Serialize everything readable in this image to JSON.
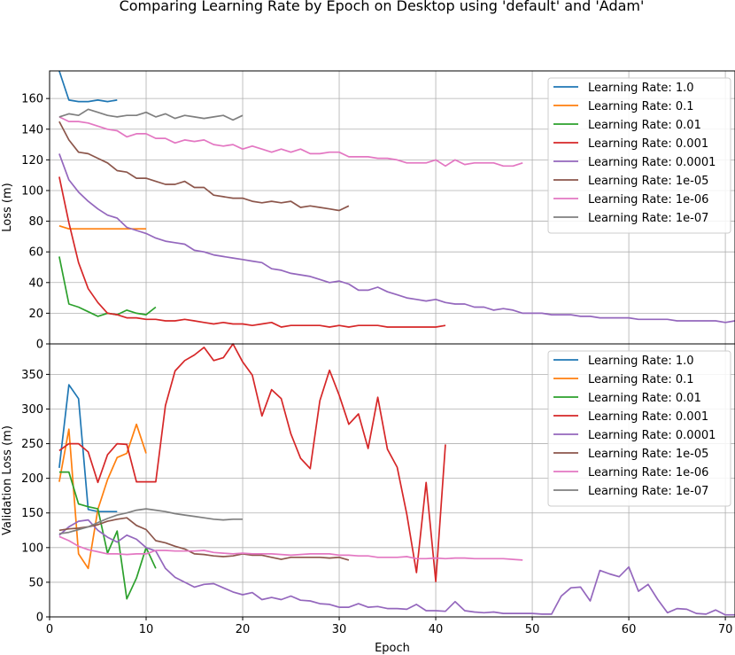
{
  "figure": {
    "title": "Comparing Learning Rate by Epoch on Desktop using 'default' and 'Adam'"
  },
  "chart_data": [
    {
      "type": "line",
      "xlabel": "",
      "ylabel": "Loss (m)",
      "xlim": [
        0,
        71
      ],
      "ylim": [
        0,
        178
      ],
      "yticks": [
        0,
        20,
        40,
        60,
        80,
        100,
        120,
        140,
        160
      ],
      "grid": true,
      "legend_position": "upper right",
      "series": [
        {
          "name": "Learning Rate: 1.0",
          "color": "#1f77b4",
          "x": [
            1,
            2,
            3,
            4,
            5,
            6,
            7
          ],
          "y": [
            178,
            159,
            158,
            158,
            159,
            158,
            159
          ]
        },
        {
          "name": "Learning Rate: 0.1",
          "color": "#ff7f0e",
          "x": [
            1,
            2,
            3,
            4,
            5,
            6,
            7,
            8,
            9,
            10
          ],
          "y": [
            77,
            75,
            75,
            75,
            75,
            75,
            75,
            75,
            75,
            75
          ]
        },
        {
          "name": "Learning Rate: 0.01",
          "color": "#2ca02c",
          "x": [
            1,
            2,
            3,
            4,
            5,
            6,
            7,
            8,
            9,
            10,
            11
          ],
          "y": [
            57,
            26,
            24,
            21,
            18,
            20,
            19,
            22,
            20,
            19,
            24
          ]
        },
        {
          "name": "Learning Rate: 0.001",
          "color": "#d62728",
          "x": [
            1,
            2,
            3,
            4,
            5,
            6,
            7,
            8,
            9,
            10,
            11,
            12,
            13,
            14,
            15,
            16,
            17,
            18,
            19,
            20,
            21,
            22,
            23,
            24,
            25,
            26,
            27,
            28,
            29,
            30,
            31,
            32,
            33,
            34,
            35,
            36,
            37,
            38,
            39,
            40,
            41
          ],
          "y": [
            109,
            79,
            53,
            36,
            27,
            20,
            19,
            17,
            17,
            16,
            16,
            15,
            15,
            16,
            15,
            14,
            13,
            14,
            13,
            13,
            12,
            13,
            14,
            11,
            12,
            12,
            12,
            12,
            11,
            12,
            11,
            12,
            12,
            12,
            11,
            11,
            11,
            11,
            11,
            11,
            12
          ]
        },
        {
          "name": "Learning Rate: 0.0001",
          "color": "#9467bd",
          "x": [
            1,
            2,
            3,
            4,
            5,
            6,
            7,
            8,
            9,
            10,
            11,
            12,
            13,
            14,
            15,
            16,
            17,
            18,
            19,
            20,
            21,
            22,
            23,
            24,
            25,
            26,
            27,
            28,
            29,
            30,
            31,
            32,
            33,
            34,
            35,
            36,
            37,
            38,
            39,
            40,
            41,
            42,
            43,
            44,
            45,
            46,
            47,
            48,
            49,
            50,
            51,
            52,
            53,
            54,
            55,
            56,
            57,
            58,
            59,
            60,
            61,
            62,
            63,
            64,
            65,
            66,
            67,
            68,
            69,
            70,
            71
          ],
          "y": [
            124,
            107,
            99,
            93,
            88,
            84,
            82,
            76,
            74,
            72,
            69,
            67,
            66,
            65,
            61,
            60,
            58,
            57,
            56,
            55,
            54,
            53,
            49,
            48,
            46,
            45,
            44,
            42,
            40,
            41,
            39,
            35,
            35,
            37,
            34,
            32,
            30,
            29,
            28,
            29,
            27,
            26,
            26,
            24,
            24,
            22,
            23,
            22,
            20,
            20,
            20,
            19,
            19,
            19,
            18,
            18,
            17,
            17,
            17,
            17,
            16,
            16,
            16,
            16,
            15,
            15,
            15,
            15,
            15,
            14,
            15
          ]
        },
        {
          "name": "Learning Rate: 1e-05",
          "color": "#8c564b",
          "x": [
            1,
            2,
            3,
            4,
            5,
            6,
            7,
            8,
            9,
            10,
            11,
            12,
            13,
            14,
            15,
            16,
            17,
            18,
            19,
            20,
            21,
            22,
            23,
            24,
            25,
            26,
            27,
            28,
            29,
            30,
            31
          ],
          "y": [
            145,
            133,
            125,
            124,
            121,
            118,
            113,
            112,
            108,
            108,
            106,
            104,
            104,
            106,
            102,
            102,
            97,
            96,
            95,
            95,
            93,
            92,
            93,
            92,
            93,
            89,
            90,
            89,
            88,
            87,
            90
          ]
        },
        {
          "name": "Learning Rate: 1e-06",
          "color": "#e377c2",
          "x": [
            1,
            2,
            3,
            4,
            5,
            6,
            7,
            8,
            9,
            10,
            11,
            12,
            13,
            14,
            15,
            16,
            17,
            18,
            19,
            20,
            21,
            22,
            23,
            24,
            25,
            26,
            27,
            28,
            29,
            30,
            31,
            32,
            33,
            34,
            35,
            36,
            37,
            38,
            39,
            40,
            41,
            42,
            43,
            44,
            45,
            46,
            47,
            48,
            49
          ],
          "y": [
            148,
            145,
            145,
            144,
            142,
            140,
            139,
            135,
            137,
            137,
            134,
            134,
            131,
            133,
            132,
            133,
            130,
            129,
            130,
            127,
            129,
            127,
            125,
            127,
            125,
            127,
            124,
            124,
            125,
            125,
            122,
            122,
            122,
            121,
            121,
            120,
            118,
            118,
            118,
            120,
            116,
            120,
            117,
            118,
            118,
            118,
            116,
            116,
            118
          ]
        },
        {
          "name": "Learning Rate: 1e-07",
          "color": "#7f7f7f",
          "x": [
            1,
            2,
            3,
            4,
            5,
            6,
            7,
            8,
            9,
            10,
            11,
            12,
            13,
            14,
            15,
            16,
            17,
            18,
            19,
            20
          ],
          "y": [
            148,
            150,
            149,
            153,
            151,
            149,
            148,
            149,
            149,
            151,
            148,
            150,
            147,
            149,
            148,
            147,
            148,
            149,
            146,
            149
          ]
        }
      ]
    },
    {
      "type": "line",
      "xlabel": "Epoch",
      "ylabel": "Validation Loss (m)",
      "xlim": [
        0,
        71
      ],
      "ylim": [
        0,
        394
      ],
      "xticks": [
        0,
        10,
        20,
        30,
        40,
        50,
        60,
        70
      ],
      "yticks": [
        0,
        50,
        100,
        150,
        200,
        250,
        300,
        350
      ],
      "grid": true,
      "legend_position": "upper right",
      "series": [
        {
          "name": "Learning Rate: 1.0",
          "color": "#1f77b4",
          "x": [
            1,
            2,
            3,
            4,
            5,
            6,
            7
          ],
          "y": [
            215,
            335,
            315,
            155,
            152,
            152,
            152
          ]
        },
        {
          "name": "Learning Rate: 0.1",
          "color": "#ff7f0e",
          "x": [
            1,
            2,
            3,
            4,
            5,
            6,
            7,
            8,
            9,
            10
          ],
          "y": [
            195,
            271,
            91,
            70,
            155,
            198,
            230,
            236,
            278,
            236
          ]
        },
        {
          "name": "Learning Rate: 0.01",
          "color": "#2ca02c",
          "x": [
            1,
            2,
            3,
            4,
            5,
            6,
            7,
            8,
            9,
            10,
            11
          ],
          "y": [
            209,
            209,
            163,
            159,
            156,
            92,
            124,
            26,
            56,
            100,
            70
          ]
        },
        {
          "name": "Learning Rate: 0.001",
          "color": "#d62728",
          "x": [
            1,
            2,
            3,
            4,
            5,
            6,
            7,
            8,
            9,
            10,
            11,
            12,
            13,
            14,
            15,
            16,
            17,
            18,
            19,
            20,
            21,
            22,
            23,
            24,
            25,
            26,
            27,
            28,
            29,
            30,
            31,
            32,
            33,
            34,
            35,
            36,
            37,
            38,
            39,
            40,
            41
          ],
          "y": [
            240,
            250,
            250,
            238,
            194,
            234,
            250,
            249,
            195,
            195,
            195,
            305,
            355,
            370,
            378,
            389,
            370,
            374,
            394,
            368,
            349,
            290,
            328,
            315,
            264,
            229,
            214,
            312,
            356,
            320,
            278,
            293,
            243,
            317,
            242,
            216,
            148,
            64,
            194,
            51,
            249
          ]
        },
        {
          "name": "Learning Rate: 0.0001",
          "color": "#9467bd",
          "x": [
            1,
            2,
            3,
            4,
            5,
            6,
            7,
            8,
            9,
            10,
            11,
            12,
            13,
            14,
            15,
            16,
            17,
            18,
            19,
            20,
            21,
            22,
            23,
            24,
            25,
            26,
            27,
            28,
            29,
            30,
            31,
            32,
            33,
            34,
            35,
            36,
            37,
            38,
            39,
            40,
            41,
            42,
            43,
            44,
            45,
            46,
            47,
            48,
            49,
            50,
            51,
            52,
            53,
            54,
            55,
            56,
            57,
            58,
            59,
            60,
            61,
            62,
            63,
            64,
            65,
            66,
            67,
            68,
            69,
            70,
            71
          ],
          "y": [
            118,
            130,
            138,
            140,
            125,
            115,
            108,
            118,
            112,
            100,
            95,
            70,
            57,
            50,
            43,
            47,
            48,
            42,
            36,
            32,
            35,
            25,
            28,
            25,
            30,
            24,
            23,
            19,
            18,
            14,
            14,
            19,
            14,
            15,
            12,
            12,
            11,
            18,
            9,
            9,
            8,
            22,
            9,
            7,
            6,
            7,
            5,
            5,
            5,
            5,
            4,
            4,
            30,
            42,
            43,
            23,
            67,
            62,
            58,
            72,
            37,
            47,
            25,
            6,
            12,
            11,
            5,
            4,
            10,
            3,
            3
          ]
        },
        {
          "name": "Learning Rate: 1e-05",
          "color": "#8c564b",
          "x": [
            1,
            2,
            3,
            4,
            5,
            6,
            7,
            8,
            9,
            10,
            11,
            12,
            13,
            14,
            15,
            16,
            17,
            18,
            19,
            20,
            21,
            22,
            23,
            24,
            25,
            26,
            27,
            28,
            29,
            30,
            31
          ],
          "y": [
            125,
            127,
            128,
            130,
            133,
            138,
            141,
            143,
            132,
            126,
            110,
            107,
            102,
            98,
            91,
            90,
            88,
            87,
            88,
            91,
            89,
            89,
            86,
            83,
            86,
            86,
            86,
            86,
            85,
            86,
            82
          ]
        },
        {
          "name": "Learning Rate: 1e-06",
          "color": "#e377c2",
          "x": [
            1,
            2,
            3,
            4,
            5,
            6,
            7,
            8,
            9,
            10,
            11,
            12,
            13,
            14,
            15,
            16,
            17,
            18,
            19,
            20,
            21,
            22,
            23,
            24,
            25,
            26,
            27,
            28,
            29,
            30,
            31,
            32,
            33,
            34,
            35,
            36,
            37,
            38,
            39,
            40,
            41,
            42,
            43,
            44,
            45,
            46,
            47,
            48,
            49
          ],
          "y": [
            116,
            110,
            102,
            97,
            94,
            91,
            91,
            90,
            91,
            91,
            96,
            96,
            95,
            95,
            95,
            96,
            93,
            92,
            91,
            92,
            91,
            91,
            91,
            90,
            89,
            90,
            91,
            91,
            91,
            89,
            89,
            88,
            88,
            86,
            86,
            86,
            87,
            84,
            84,
            85,
            84,
            85,
            85,
            84,
            84,
            84,
            84,
            83,
            82
          ]
        },
        {
          "name": "Learning Rate: 1e-07",
          "color": "#7f7f7f",
          "x": [
            1,
            2,
            3,
            4,
            5,
            6,
            7,
            8,
            9,
            10,
            11,
            12,
            13,
            14,
            15,
            16,
            17,
            18,
            19,
            20
          ],
          "y": [
            120,
            122,
            126,
            130,
            136,
            142,
            147,
            150,
            154,
            156,
            154,
            152,
            149,
            147,
            145,
            143,
            141,
            140,
            141,
            141
          ]
        }
      ]
    }
  ]
}
